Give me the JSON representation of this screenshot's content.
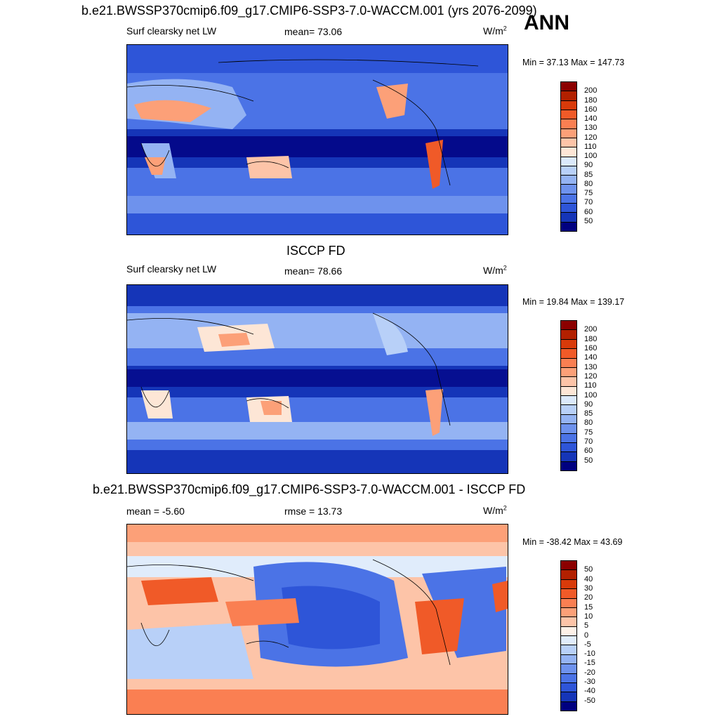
{
  "ann_label": "ANN",
  "panels": [
    {
      "title": "b.e21.BWSSP370cmip6.f09_g17.CMIP6-SSP3-7.0-WACCM.001 (yrs 2076-2099)",
      "left_label": "Surf clearsky net LW",
      "center_label": "mean=  73.06",
      "units": "W/m",
      "units_sup": "2",
      "minmax": "Min =  37.13 Max = 147.73",
      "colorbar_colors": [
        "#8b0000",
        "#b22000",
        "#d83a0a",
        "#f05a28",
        "#fa7f52",
        "#fca078",
        "#fdc4a8",
        "#fde6d6",
        "#dbe9fb",
        "#b8d0f8",
        "#94b3f3",
        "#6e92ed",
        "#4b73e6",
        "#2e55d8",
        "#1535b8",
        "#000080"
      ],
      "colorbar_labels": [
        "200",
        "180",
        "160",
        "140",
        "130",
        "120",
        "110",
        "100",
        "90",
        "85",
        "80",
        "75",
        "70",
        "60",
        "50"
      ]
    },
    {
      "title": "ISCCP FD",
      "left_label": "Surf clearsky net LW",
      "center_label": "mean=  78.66",
      "units": "W/m",
      "units_sup": "2",
      "minmax": "Min =  19.84 Max = 139.17",
      "colorbar_colors": [
        "#8b0000",
        "#b22000",
        "#d83a0a",
        "#f05a28",
        "#fa7f52",
        "#fca078",
        "#fdc4a8",
        "#fde6d6",
        "#dbe9fb",
        "#b8d0f8",
        "#94b3f3",
        "#6e92ed",
        "#4b73e6",
        "#2e55d8",
        "#1535b8",
        "#000080"
      ],
      "colorbar_labels": [
        "200",
        "180",
        "160",
        "140",
        "130",
        "120",
        "110",
        "100",
        "90",
        "85",
        "80",
        "75",
        "70",
        "60",
        "50"
      ]
    },
    {
      "title": "b.e21.BWSSP370cmip6.f09_g17.CMIP6-SSP3-7.0-WACCM.001 - ISCCP FD",
      "left_label": "mean =  -5.60",
      "center_label": "rmse =  13.73",
      "units": "W/m",
      "units_sup": "2",
      "minmax": "Min = -38.42 Max =  43.69",
      "colorbar_colors": [
        "#8b0000",
        "#b22000",
        "#d83a0a",
        "#f05a28",
        "#fa7f52",
        "#fca078",
        "#fdc4a8",
        "#fdf1e8",
        "#e0ecfb",
        "#b8d0f8",
        "#94b3f3",
        "#6e92ed",
        "#4b73e6",
        "#2e55d8",
        "#1535b8",
        "#000080"
      ],
      "colorbar_labels": [
        "50",
        "40",
        "30",
        "20",
        "15",
        "10",
        "5",
        "0",
        "-5",
        "-10",
        "-15",
        "-20",
        "-30",
        "-40",
        "-50"
      ]
    }
  ]
}
